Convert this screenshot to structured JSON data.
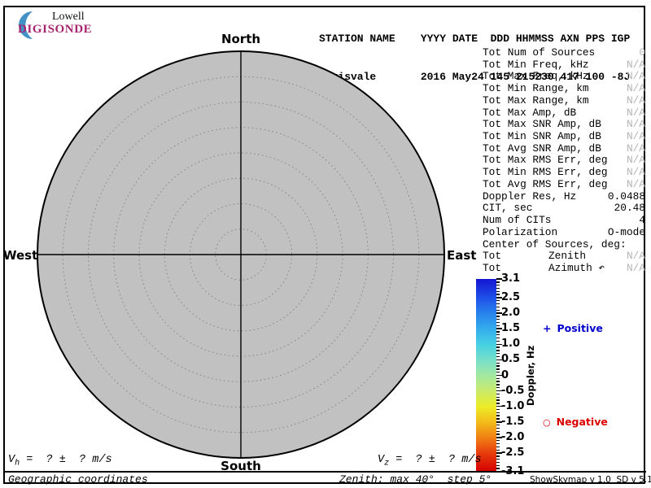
{
  "logo": {
    "name": "Lowell",
    "product": "DIGISONDE",
    "colors": {
      "crescent": "#4292c6",
      "product": "#a8246e"
    }
  },
  "header": {
    "line1": "STATION NAME    YYYY DATE  DDD HHMMSS AXN PPS IGP",
    "line2": "Louisvale       2016 May24 145 215230 417 100 -8J"
  },
  "compass": {
    "north": "North",
    "south": "South",
    "east": "East",
    "west": "West"
  },
  "plot": {
    "max_zenith_deg": 40,
    "step_deg": 5,
    "fill": "#c1c1c1"
  },
  "stats": {
    "rows": [
      {
        "label": "Tot Num of Sources",
        "value": "0",
        "na": true
      },
      {
        "label": "Tot Min Freq, kHz",
        "value": "N/A",
        "na": true
      },
      {
        "label": "Tot Max Freq, kHz",
        "value": "N/A",
        "na": true
      },
      {
        "label": "Tot Min Range, km",
        "value": "N/A",
        "na": true
      },
      {
        "label": "Tot Max Range, km",
        "value": "N/A",
        "na": true
      },
      {
        "label": "Tot Max Amp, dB",
        "value": "N/A",
        "na": true
      },
      {
        "label": "Tot Max SNR Amp, dB",
        "value": "N/A",
        "na": true
      },
      {
        "label": "Tot Min SNR Amp, dB",
        "value": "N/A",
        "na": true
      },
      {
        "label": "Tot Avg SNR Amp, dB",
        "value": "N/A",
        "na": true
      },
      {
        "label": "Tot Max RMS Err, deg",
        "value": "N/A",
        "na": true
      },
      {
        "label": "Tot Min RMS Err, deg",
        "value": "N/A",
        "na": true
      },
      {
        "label": "Tot Avg RMS Err, deg",
        "value": "N/A",
        "na": true
      },
      {
        "label": "Doppler Res, Hz",
        "value": "0.0488",
        "na": false
      },
      {
        "label": "CIT, sec",
        "value": "20.48",
        "na": false
      },
      {
        "label": "Num of CITs",
        "value": "4",
        "na": false
      },
      {
        "label": "Polarization",
        "value": "O-mode",
        "na": false
      },
      {
        "label": "Center of Sources, deg:",
        "value": "",
        "na": false
      },
      {
        "label": "Tot",
        "mid": "Zenith",
        "value": "N/A",
        "na": true
      },
      {
        "label": "Tot",
        "mid": "Azimuth ↶",
        "value": "N/A",
        "na": true
      }
    ]
  },
  "colorbar": {
    "axis_title": "Doppler, Hz",
    "max": 3.1,
    "min": -3.1,
    "minor_step": 0.1,
    "tick_labels": [
      "3.1",
      "2.5",
      "2.0",
      "1.5",
      "1.0",
      "0.5",
      "0",
      "-0.5",
      "-1.0",
      "-1.5",
      "-2.0",
      "-2.5",
      "-3.1"
    ],
    "tick_values": [
      3.1,
      2.5,
      2.0,
      1.5,
      1.0,
      0.5,
      0,
      -0.5,
      -1.0,
      -1.5,
      -2.0,
      -2.5,
      -3.1
    ],
    "gradient": [
      {
        "v": 3.1,
        "c": "#1414d2"
      },
      {
        "v": 2.5,
        "c": "#1e50e8"
      },
      {
        "v": 2.0,
        "c": "#2882ec"
      },
      {
        "v": 1.5,
        "c": "#34acec"
      },
      {
        "v": 1.0,
        "c": "#46d0e4"
      },
      {
        "v": 0.5,
        "c": "#76dfc8"
      },
      {
        "v": 0.0,
        "c": "#a2e8a2"
      },
      {
        "v": -0.5,
        "c": "#c9ea6a"
      },
      {
        "v": -1.0,
        "c": "#ecec28"
      },
      {
        "v": -1.5,
        "c": "#f2bc1a"
      },
      {
        "v": -2.0,
        "c": "#f08014"
      },
      {
        "v": -2.5,
        "c": "#e83c0e"
      },
      {
        "v": -3.1,
        "c": "#d40000"
      }
    ]
  },
  "legend": {
    "positive": {
      "symbol": "+",
      "label": "Positive",
      "color": "#0000cc"
    },
    "negative": {
      "symbol": "○",
      "label": "Negative",
      "color": "#dd0000"
    }
  },
  "footer": {
    "vh": {
      "sym": "V",
      "sub": "h",
      "rest": " =  ? ±  ? m/s"
    },
    "vz": {
      "sym": "V",
      "sub": "z",
      "rest": " =  ? ±  ? m/s"
    },
    "coordinates": "Geographic coordinates",
    "zenith_note": "Zenith: max 40°  step 5°",
    "version": "ShowSkymap v 1.0  SD v 5.1"
  }
}
